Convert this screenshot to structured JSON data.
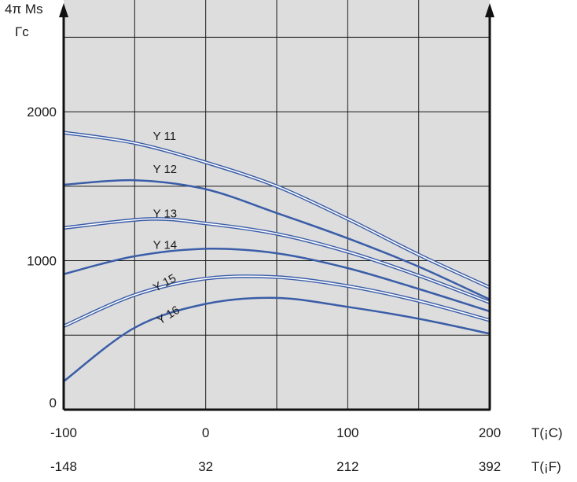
{
  "chart_data": {
    "type": "line",
    "ylabel": "4π Ms",
    "ylabel_unit": "Гс",
    "xlabel_c": "T(¡C)",
    "xlabel_f": "T(¡F)",
    "x_ticks_c": [
      "-100",
      "0",
      "100",
      "200"
    ],
    "x_ticks_f": [
      "-148",
      "32",
      "212",
      "392"
    ],
    "y_ticks": [
      "0",
      "1000",
      "2000"
    ],
    "xlim": [
      -100,
      200
    ],
    "ylim": [
      0,
      2750
    ],
    "grid": true,
    "colors": {
      "line": "#3a5da8",
      "background": "#dddddd"
    },
    "series": [
      {
        "name": "Y 11",
        "style": "double",
        "label_at": [
          -15,
          1810
        ],
        "points": [
          [
            -100,
            1860
          ],
          [
            -50,
            1790
          ],
          [
            0,
            1660
          ],
          [
            50,
            1500
          ],
          [
            100,
            1280
          ],
          [
            150,
            1040
          ],
          [
            200,
            820
          ]
        ]
      },
      {
        "name": "Y 12",
        "style": "single",
        "label_at": [
          -15,
          1590
        ],
        "points": [
          [
            -100,
            1510
          ],
          [
            -50,
            1540
          ],
          [
            0,
            1480
          ],
          [
            50,
            1320
          ],
          [
            100,
            1150
          ],
          [
            150,
            960
          ],
          [
            200,
            740
          ]
        ]
      },
      {
        "name": "Y 13",
        "style": "double",
        "label_at": [
          -15,
          1290
        ],
        "points": [
          [
            -100,
            1220
          ],
          [
            -40,
            1280
          ],
          [
            0,
            1250
          ],
          [
            50,
            1180
          ],
          [
            100,
            1060
          ],
          [
            150,
            900
          ],
          [
            200,
            720
          ]
        ]
      },
      {
        "name": "Y 14",
        "style": "single",
        "label_at": [
          -15,
          1080
        ],
        "points": [
          [
            -100,
            910
          ],
          [
            -50,
            1030
          ],
          [
            0,
            1080
          ],
          [
            50,
            1050
          ],
          [
            100,
            950
          ],
          [
            150,
            810
          ],
          [
            200,
            660
          ]
        ]
      },
      {
        "name": "Y 15",
        "style": "double",
        "label_at": [
          -13,
          790
        ],
        "points": [
          [
            -100,
            560
          ],
          [
            -50,
            770
          ],
          [
            0,
            880
          ],
          [
            50,
            890
          ],
          [
            100,
            830
          ],
          [
            150,
            730
          ],
          [
            200,
            600
          ]
        ]
      },
      {
        "name": "Y 16",
        "style": "single",
        "label_at": [
          -10,
          570
        ],
        "points": [
          [
            -100,
            190
          ],
          [
            -50,
            550
          ],
          [
            0,
            710
          ],
          [
            50,
            750
          ],
          [
            100,
            690
          ],
          [
            150,
            610
          ],
          [
            200,
            510
          ]
        ]
      }
    ]
  }
}
